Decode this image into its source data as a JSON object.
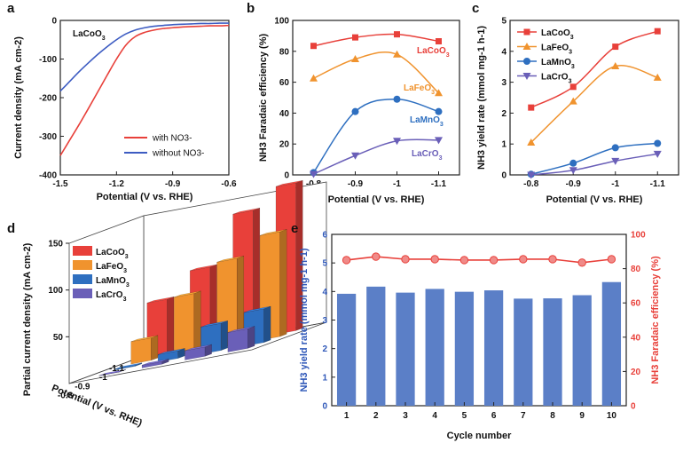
{
  "chart_data": [
    {
      "panel": "a",
      "type": "line",
      "annotation": "LaCoO3",
      "xlabel": "Potential (V vs. RHE)",
      "ylabel": "Current density (mA cm-2)",
      "xlim": [
        -1.5,
        -0.6
      ],
      "ylim": [
        -400,
        0
      ],
      "xticks": [
        -1.5,
        -1.2,
        -0.9,
        -0.6
      ],
      "yticks": [
        0,
        -100,
        -200,
        -300,
        -400
      ],
      "legend_position": "bottom-right",
      "series": [
        {
          "name": "with NO3-",
          "color": "#e8403a",
          "x": [
            -1.5,
            -1.45,
            -1.4,
            -1.35,
            -1.3,
            -1.25,
            -1.2,
            -1.15,
            -1.1,
            -1.05,
            -1.0,
            -0.95,
            -0.9,
            -0.85,
            -0.8,
            -0.75,
            -0.7,
            -0.65,
            -0.6
          ],
          "y": [
            -350,
            -310,
            -270,
            -228,
            -185,
            -142,
            -100,
            -64,
            -42,
            -31,
            -25,
            -21,
            -19,
            -17,
            -16,
            -15,
            -14,
            -14,
            -13
          ]
        },
        {
          "name": "without NO3-",
          "color": "#3d5cc2",
          "x": [
            -1.5,
            -1.45,
            -1.4,
            -1.35,
            -1.3,
            -1.25,
            -1.2,
            -1.15,
            -1.1,
            -1.05,
            -1.0,
            -0.95,
            -0.9,
            -0.85,
            -0.8,
            -0.75,
            -0.7,
            -0.65,
            -0.6
          ],
          "y": [
            -183,
            -158,
            -133,
            -110,
            -88,
            -68,
            -50,
            -35,
            -25,
            -19,
            -15,
            -13,
            -11,
            -10,
            -9,
            -8,
            -8,
            -7,
            -7
          ]
        }
      ]
    },
    {
      "panel": "b",
      "type": "line",
      "xlabel": "Potential (V vs. RHE)",
      "ylabel": "NH3 Faradaic efficiency (%)",
      "categories": [
        -0.8,
        -0.9,
        -1.0,
        -1.1
      ],
      "ylim": [
        0,
        100
      ],
      "yticks": [
        0,
        20,
        40,
        60,
        80,
        100
      ],
      "series": [
        {
          "name": "LaCoO3",
          "color": "#e8403a",
          "marker": "square",
          "values": [
            83.5,
            89,
            91,
            86.5
          ]
        },
        {
          "name": "LaFeO3",
          "color": "#f0932e",
          "marker": "triangle-up",
          "values": [
            62.5,
            75,
            78,
            53
          ]
        },
        {
          "name": "LaMnO3",
          "color": "#2e6fc0",
          "marker": "circle",
          "values": [
            1.5,
            41,
            49,
            41
          ]
        },
        {
          "name": "LaCrO3",
          "color": "#6a5fb8",
          "marker": "triangle-down",
          "values": [
            0.5,
            12.5,
            22,
            22.5
          ]
        }
      ]
    },
    {
      "panel": "c",
      "type": "line",
      "xlabel": "Potential (V vs. RHE)",
      "ylabel": "NH3 yield rate (mmol mg-1 h-1)",
      "categories": [
        -0.8,
        -0.9,
        -1.0,
        -1.1
      ],
      "ylim": [
        0,
        5
      ],
      "yticks": [
        0,
        1,
        2,
        3,
        4,
        5
      ],
      "legend_position": "top-left",
      "series": [
        {
          "name": "LaCoO3",
          "color": "#e8403a",
          "marker": "square",
          "values": [
            2.18,
            2.85,
            4.15,
            4.65
          ]
        },
        {
          "name": "LaFeO3",
          "color": "#f0932e",
          "marker": "triangle-up",
          "values": [
            1.05,
            2.38,
            3.52,
            3.15
          ]
        },
        {
          "name": "LaMnO3",
          "color": "#2e6fc0",
          "marker": "circle",
          "values": [
            0.02,
            0.38,
            0.88,
            1.02
          ]
        },
        {
          "name": "LaCrO3",
          "color": "#6a5fb8",
          "marker": "triangle-down",
          "values": [
            0.0,
            0.15,
            0.45,
            0.68
          ]
        }
      ]
    },
    {
      "panel": "d",
      "type": "bar",
      "xlabel": "Potential (V vs. RHE)",
      "ylabel": "Partial current density (mA cm-2)",
      "categories": [
        -0.8,
        -0.9,
        -1,
        -1.1
      ],
      "zlim": [
        0,
        150
      ],
      "zticks": [
        50,
        100,
        150
      ],
      "xtick_labels": [
        "-1.1",
        "-1",
        "-0.9",
        "-0.8"
      ],
      "legend_position": "top-left",
      "series": [
        {
          "name": "LaCoO3",
          "color": "#e8403a",
          "values": [
            59,
            85,
            137,
            158
          ]
        },
        {
          "name": "LaFeO3",
          "color": "#f0932e",
          "values": [
            24,
            63,
            92,
            112
          ]
        },
        {
          "name": "LaMnO3",
          "color": "#2e6fc0",
          "values": [
            1,
            8,
            29,
            36
          ]
        },
        {
          "name": "LaCrO3",
          "color": "#6a5fb8",
          "values": [
            0.3,
            3,
            10,
            21
          ]
        }
      ]
    },
    {
      "panel": "e",
      "type": "bar",
      "xlabel": "Cycle number",
      "ylabel": "NH3 yield rate (mmol mg-1 h-1)",
      "y2label": "NH3 Faradaic efficiency (%)",
      "categories": [
        1,
        2,
        3,
        4,
        5,
        6,
        7,
        8,
        9,
        10
      ],
      "ylim": [
        0,
        6
      ],
      "yticks": [
        0,
        1,
        2,
        3,
        4,
        5,
        6
      ],
      "y2lim": [
        0,
        100
      ],
      "y2ticks": [
        0,
        20,
        40,
        60,
        80,
        100
      ],
      "bar_color": "#5b7fc7",
      "line_color": "#e8403a",
      "yield_values": [
        3.92,
        4.17,
        3.96,
        4.09,
        3.99,
        4.04,
        3.75,
        3.76,
        3.87,
        4.33
      ],
      "fe_values": [
        85.0,
        87.0,
        85.5,
        85.5,
        85.0,
        85.0,
        85.5,
        85.5,
        83.5,
        85.5
      ]
    }
  ],
  "figure": {
    "panel_labels": [
      "a",
      "b",
      "c",
      "d",
      "e"
    ],
    "label_color": "#111111",
    "axis_color": "#222222"
  }
}
